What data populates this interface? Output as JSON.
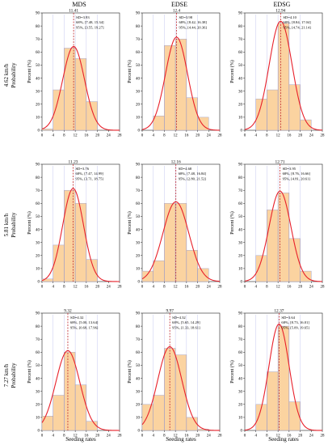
{
  "figure": {
    "columns": [
      "MDS",
      "EDSE",
      "EDSG"
    ],
    "rows": [
      "4.62 km/h",
      "5.81 km/h",
      "7.27 km/h"
    ],
    "row_prefix": "Probability",
    "xlabel": "Seeding rates",
    "ylabel": "Percent (%)",
    "x_ticks": [
      0,
      4,
      8,
      12,
      16,
      20,
      24,
      28
    ],
    "y_ticks": [
      0,
      10,
      20,
      30,
      40,
      50,
      60,
      70,
      80,
      90
    ],
    "colors": {
      "bar_fill": "#fbd3a0",
      "bar_stroke": "#a8a8c8",
      "curve": "#e8202a",
      "mean_line": "#c0282e",
      "grid_line": "#6a6fd6"
    }
  },
  "chart_data": [
    {
      "type": "bar",
      "row": 0,
      "col": 0,
      "title": "MDS",
      "row_label": "4.62 km/h",
      "bin_edges": [
        0,
        4,
        8,
        12,
        16,
        20,
        24
      ],
      "values": [
        1,
        31,
        63,
        55,
        22,
        0
      ],
      "mean": 11.41,
      "mean_label": "11.41",
      "sd": 3.93,
      "stats": [
        "SD=3.93",
        "68%, [7.48, 15.34]",
        "95%, [3.55, 19.27]"
      ],
      "xlim": [
        0,
        28
      ],
      "ylim": [
        0,
        90
      ],
      "grid": false
    },
    {
      "type": "bar",
      "row": 0,
      "col": 1,
      "title": "EDSE",
      "row_label": "4.62 km/h",
      "bin_edges": [
        0,
        4,
        8,
        12,
        16,
        20,
        24
      ],
      "values": [
        0,
        11,
        65,
        70,
        25,
        10
      ],
      "mean": 12.4,
      "mean_label": "12.4",
      "sd": 3.98,
      "stats": [
        "SD=3.98",
        "68%, [8.42, 16.38]",
        "95%, [4.44, 20.36]"
      ],
      "xlim": [
        0,
        28
      ],
      "ylim": [
        0,
        90
      ],
      "grid": false
    },
    {
      "type": "bar",
      "row": 0,
      "col": 2,
      "title": "EDSG",
      "row_label": "4.62 km/h",
      "bin_edges": [
        0,
        4,
        8,
        12,
        16,
        20,
        24
      ],
      "values": [
        0,
        24,
        31,
        82,
        35,
        8
      ],
      "mean": 12.94,
      "mean_label": "12.94",
      "sd": 4.1,
      "stats": [
        "SD=4.10",
        "68%, [8.84, 17.04]",
        "95%, [4.74, 21.14]"
      ],
      "xlim": [
        0,
        28
      ],
      "ylim": [
        0,
        90
      ],
      "grid": false
    },
    {
      "type": "bar",
      "row": 1,
      "col": 0,
      "title": "MDS",
      "row_label": "5.81 km/h",
      "bin_edges": [
        0,
        4,
        8,
        12,
        16,
        20,
        24
      ],
      "values": [
        2,
        28,
        70,
        60,
        17,
        0
      ],
      "mean": 11.23,
      "mean_label": "11.23",
      "sd": 3.76,
      "stats": [
        "SD=3.76",
        "68%, [7.47, 14.99]",
        "95%, [3.71, 18.75]"
      ],
      "xlim": [
        0,
        28
      ],
      "ylim": [
        0,
        90
      ],
      "grid": false
    },
    {
      "type": "bar",
      "row": 1,
      "col": 1,
      "title": "EDSE",
      "row_label": "5.81 km/h",
      "bin_edges": [
        0,
        4,
        8,
        12,
        16,
        20,
        24
      ],
      "values": [
        8,
        16,
        60,
        60,
        24,
        10
      ],
      "mean": 12.16,
      "mean_label": "12.16",
      "sd": 4.68,
      "stats": [
        "SD=4.68",
        "68%, [7.48, 16.84]",
        "95%, [2.80, 21.52]"
      ],
      "xlim": [
        0,
        28
      ],
      "ylim": [
        0,
        90
      ],
      "grid": false
    },
    {
      "type": "bar",
      "row": 1,
      "col": 2,
      "title": "EDSG",
      "row_label": "5.81 km/h",
      "bin_edges": [
        0,
        4,
        8,
        12,
        16,
        20,
        24
      ],
      "values": [
        0,
        20,
        55,
        68,
        33,
        8
      ],
      "mean": 12.71,
      "mean_label": "12.71",
      "sd": 3.95,
      "stats": [
        "SD=3.95",
        "68%, [8.76, 16.66]",
        "95%, [4.81, 20.61]"
      ],
      "xlim": [
        0,
        28
      ],
      "ylim": [
        0,
        90
      ],
      "grid": false
    },
    {
      "type": "bar",
      "row": 2,
      "col": 0,
      "title": "MDS",
      "row_label": "7.27 km/h",
      "bin_edges": [
        0,
        4,
        8,
        12,
        16,
        20,
        24
      ],
      "values": [
        11,
        27,
        60,
        35,
        7,
        0
      ],
      "mean": 9.32,
      "mean_label": "9.32",
      "sd": 4.32,
      "stats": [
        "SD=4.32",
        "68%, [5.00, 13.64]",
        "95%, [0.68, 17.96]"
      ],
      "xlim": [
        0,
        28
      ],
      "ylim": [
        0,
        90
      ],
      "grid": false
    },
    {
      "type": "bar",
      "row": 2,
      "col": 1,
      "title": "EDSE",
      "row_label": "7.27 km/h",
      "bin_edges": [
        0,
        4,
        8,
        12,
        16,
        20,
        24
      ],
      "values": [
        20,
        27,
        63,
        58,
        10,
        1
      ],
      "mean": 9.97,
      "mean_label": "9.97",
      "sd": 4.32,
      "stats": [
        "SD=4.32",
        "68%, [5.65, 14.29]",
        "95%, [1.33, 18.61]"
      ],
      "xlim": [
        0,
        28
      ],
      "ylim": [
        0,
        90
      ],
      "grid": false
    },
    {
      "type": "bar",
      "row": 2,
      "col": 2,
      "title": "EDSG",
      "row_label": "7.27 km/h",
      "bin_edges": [
        0,
        4,
        8,
        12,
        16,
        20,
        24
      ],
      "values": [
        0,
        20,
        45,
        80,
        22,
        0
      ],
      "mean": 12.37,
      "mean_label": "12.37",
      "sd": 3.64,
      "stats": [
        "SD=3.64",
        "68%, [8.73, 16.01]",
        "95%, [5.09, 19.65]"
      ],
      "xlim": [
        0,
        28
      ],
      "ylim": [
        0,
        90
      ],
      "grid": false
    }
  ]
}
